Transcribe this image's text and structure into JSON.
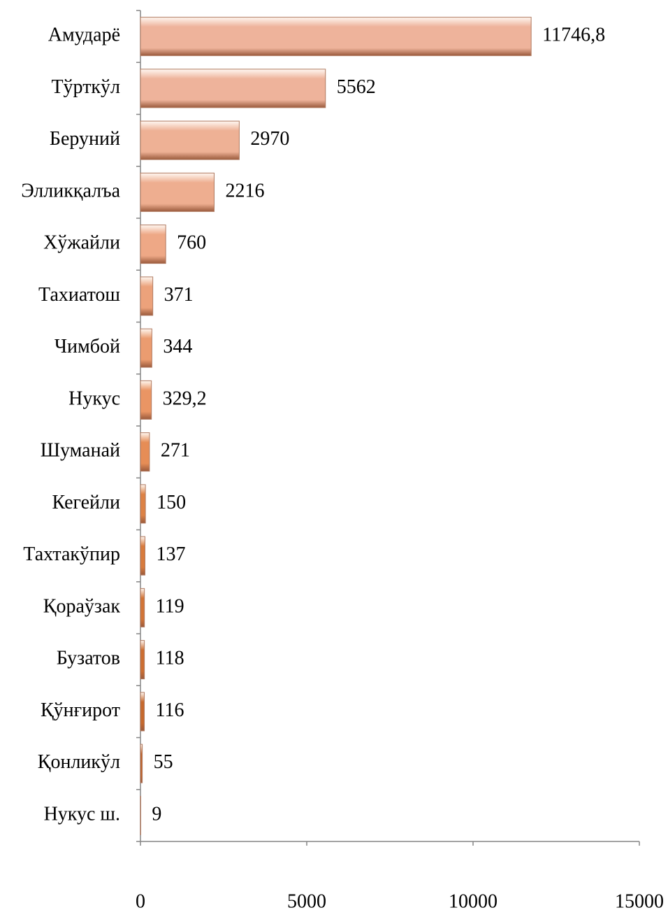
{
  "chart_data": {
    "type": "bar",
    "orientation": "horizontal",
    "categories": [
      "Амударё",
      "Тўрткўл",
      "Беруний",
      "Элликқалъа",
      "Хўжайли",
      "Тахиатош",
      "Чимбой",
      "Нукус",
      "Шуманай",
      "Кегейли",
      "Тахтакўпир",
      "Қораўзак",
      "Бузатов",
      "Қўнғирот",
      "Қонликўл",
      "Нукус ш."
    ],
    "values": [
      11746.8,
      5562,
      2970,
      2216,
      760,
      371,
      344,
      329.2,
      271,
      150,
      137,
      119,
      118,
      116,
      55,
      9
    ],
    "value_labels": [
      "11746,8",
      "5562",
      "2970",
      "2216",
      "760",
      "371",
      "344",
      "329,2",
      "271",
      "150",
      "137",
      "119",
      "118",
      "116",
      "55",
      "9"
    ],
    "colors": [
      "#eeb39b",
      "#eeb39b",
      "#eeb195",
      "#eeae90",
      "#eea886",
      "#eca27b",
      "#eb9c70",
      "#ea9564",
      "#e68d56",
      "#dd8245",
      "#d87b3d",
      "#d27436",
      "#cc6e31",
      "#c6692d",
      "#bf632a",
      "#b85e28"
    ],
    "xlim": [
      0,
      15000
    ],
    "xticks": [
      0,
      5000,
      10000,
      15000
    ],
    "grid": false
  }
}
